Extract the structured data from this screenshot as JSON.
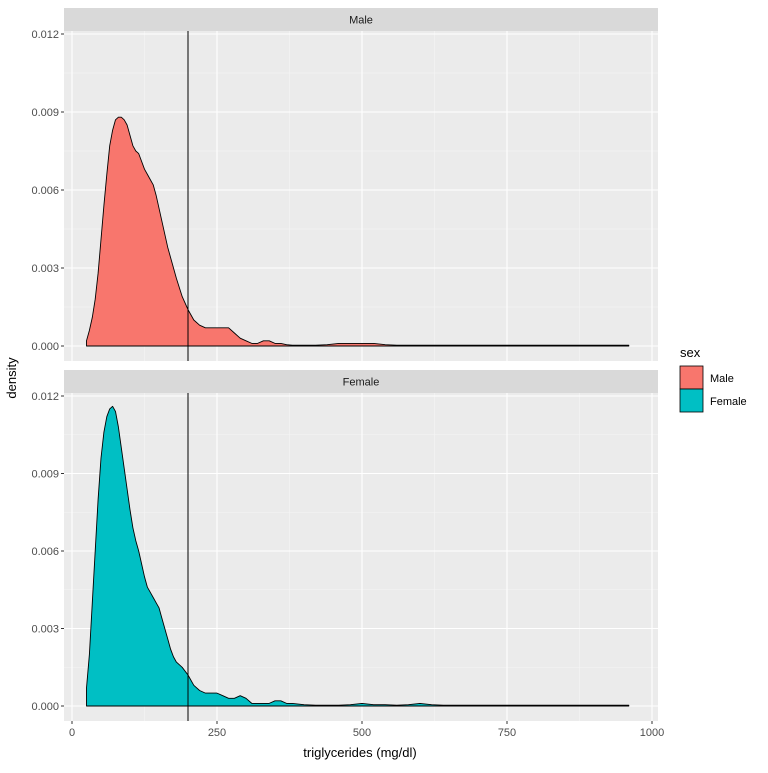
{
  "chart_data": {
    "type": "area",
    "xlabel": "triglycerides (mg/dl)",
    "ylabel": "density",
    "xlim": [
      0,
      1000
    ],
    "ylim": [
      0,
      0.012
    ],
    "x_ticks": [
      0,
      250,
      500,
      750,
      1000
    ],
    "x_tick_labels": [
      "0",
      "250",
      "500",
      "750",
      "1000"
    ],
    "y_ticks": [
      0,
      0.003,
      0.006,
      0.009,
      0.012
    ],
    "y_tick_labels": [
      "0.000",
      "0.003",
      "0.006",
      "0.009",
      "0.012"
    ],
    "vline_x": 200,
    "grid": true,
    "legend": {
      "title": "sex",
      "position": "right",
      "entries": [
        {
          "label": "Male",
          "color": "#F8766D"
        },
        {
          "label": "Female",
          "color": "#00BFC4"
        }
      ]
    },
    "panels": [
      {
        "strip": "Male",
        "color": "#F8766D",
        "x": [
          25,
          30,
          35,
          40,
          45,
          50,
          55,
          60,
          65,
          70,
          75,
          80,
          85,
          90,
          95,
          100,
          105,
          110,
          115,
          120,
          125,
          130,
          135,
          140,
          145,
          150,
          155,
          160,
          165,
          170,
          175,
          180,
          190,
          200,
          210,
          220,
          230,
          240,
          250,
          260,
          270,
          280,
          290,
          300,
          310,
          320,
          330,
          340,
          350,
          360,
          370,
          380,
          400,
          420,
          440,
          460,
          480,
          500,
          520,
          540,
          560,
          580,
          600,
          620,
          640,
          660,
          680,
          700,
          720,
          740,
          760,
          780,
          800,
          820,
          840,
          860,
          880,
          900,
          920,
          940,
          960
        ],
        "y": [
          0.0002,
          0.0006,
          0.0011,
          0.0018,
          0.0028,
          0.0041,
          0.0054,
          0.0066,
          0.0077,
          0.0083,
          0.0087,
          0.0088,
          0.0088,
          0.0087,
          0.0085,
          0.0081,
          0.0077,
          0.0075,
          0.0074,
          0.0071,
          0.0068,
          0.0066,
          0.0064,
          0.0062,
          0.0058,
          0.0053,
          0.0048,
          0.0043,
          0.0038,
          0.0034,
          0.003,
          0.0026,
          0.0019,
          0.0014,
          0.001,
          0.0008,
          0.0007,
          0.0007,
          0.0007,
          0.0007,
          0.0007,
          0.0005,
          0.0003,
          0.0002,
          0.0001,
          0.0001,
          0.0002,
          0.0002,
          0.0001,
          0.0001,
          5e-05,
          3e-05,
          3e-05,
          3e-05,
          5e-05,
          0.0001,
          0.0001,
          0.0001,
          0.0001,
          5e-05,
          3e-05,
          3e-05,
          3e-05,
          3e-05,
          3e-05,
          3e-05,
          3e-05,
          3e-05,
          3e-05,
          3e-05,
          3e-05,
          3e-05,
          3e-05,
          3e-05,
          3e-05,
          3e-05,
          3e-05,
          3e-05,
          3e-05,
          3e-05,
          3e-05
        ]
      },
      {
        "strip": "Female",
        "color": "#00BFC4",
        "x": [
          25,
          30,
          35,
          40,
          45,
          50,
          55,
          60,
          65,
          70,
          75,
          80,
          85,
          90,
          95,
          100,
          105,
          110,
          115,
          120,
          125,
          130,
          135,
          140,
          145,
          150,
          155,
          160,
          165,
          170,
          175,
          180,
          190,
          200,
          210,
          220,
          230,
          240,
          250,
          260,
          270,
          280,
          290,
          300,
          310,
          320,
          330,
          340,
          350,
          360,
          370,
          380,
          400,
          420,
          440,
          460,
          480,
          500,
          520,
          540,
          560,
          580,
          600,
          620,
          640,
          660,
          680,
          700,
          720,
          740,
          760,
          780,
          800,
          820,
          840,
          860,
          880,
          900,
          920,
          940,
          960
        ],
        "y": [
          0.0007,
          0.002,
          0.004,
          0.006,
          0.008,
          0.0096,
          0.0106,
          0.0112,
          0.0115,
          0.0116,
          0.0114,
          0.0108,
          0.01,
          0.0092,
          0.0084,
          0.0076,
          0.0069,
          0.0064,
          0.006,
          0.0055,
          0.005,
          0.0046,
          0.0044,
          0.0042,
          0.004,
          0.0038,
          0.0034,
          0.003,
          0.0026,
          0.0022,
          0.0019,
          0.0017,
          0.0015,
          0.0012,
          0.0008,
          0.0006,
          0.0005,
          0.0005,
          0.0005,
          0.0004,
          0.0003,
          0.0003,
          0.0004,
          0.0003,
          0.0001,
          0.0001,
          0.0001,
          0.0001,
          0.0002,
          0.0002,
          0.0001,
          0.0001,
          5e-05,
          3e-05,
          3e-05,
          3e-05,
          5e-05,
          0.0001,
          5e-05,
          5e-05,
          3e-05,
          5e-05,
          0.0001,
          5e-05,
          3e-05,
          3e-05,
          3e-05,
          3e-05,
          3e-05,
          3e-05,
          3e-05,
          3e-05,
          3e-05,
          3e-05,
          3e-05,
          3e-05,
          3e-05,
          3e-05,
          3e-05,
          3e-05,
          3e-05
        ]
      }
    ]
  }
}
